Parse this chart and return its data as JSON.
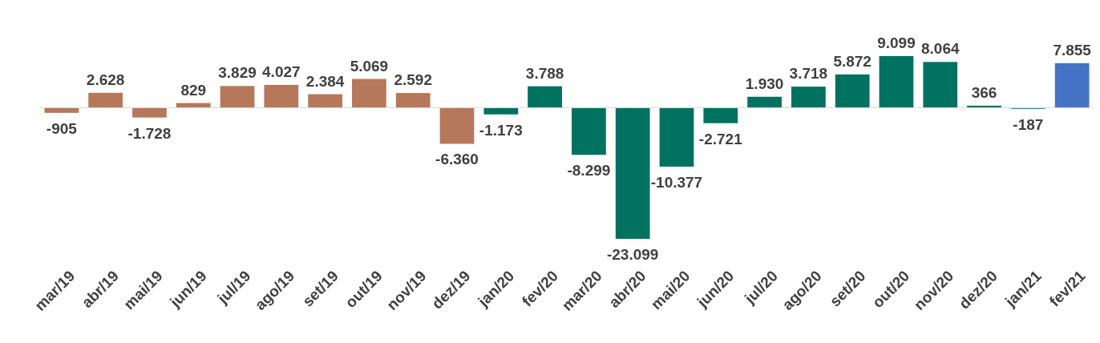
{
  "chart_data": {
    "type": "bar",
    "categories": [
      "mar/19",
      "abr/19",
      "mai/19",
      "jun/19",
      "jul/19",
      "ago/19",
      "set/19",
      "out/19",
      "nov/19",
      "dez/19",
      "jan/20",
      "fev/20",
      "mar/20",
      "abr/20",
      "mai/20",
      "jun/20",
      "jul/20",
      "ago/20",
      "set/20",
      "out/20",
      "nov/20",
      "dez/20",
      "jan/21",
      "fev/21"
    ],
    "values": [
      -905,
      2628,
      -1728,
      829,
      3829,
      4027,
      2384,
      5069,
      2592,
      -6360,
      -1173,
      3788,
      -8299,
      -23099,
      -10377,
      -2721,
      1930,
      3718,
      5872,
      9099,
      8064,
      366,
      -187,
      7855
    ],
    "colors": [
      "#b5785a",
      "#b5785a",
      "#b5785a",
      "#b5785a",
      "#b5785a",
      "#b5785a",
      "#b5785a",
      "#b5785a",
      "#b5785a",
      "#b5785a",
      "#00725f",
      "#00725f",
      "#00725f",
      "#00725f",
      "#00725f",
      "#00725f",
      "#00725f",
      "#00725f",
      "#00725f",
      "#00725f",
      "#00725f",
      "#00725f",
      "#00725f",
      "#4472c4"
    ],
    "value_labels": [
      "-905",
      "2.628",
      "-1.728",
      "829",
      "3.829",
      "4.027",
      "2.384",
      "5.069",
      "2.592",
      "-6.360",
      "-1.173",
      "3.788",
      "-8.299",
      "-23.099",
      "-10.377",
      "-2.721",
      "1.930",
      "3.718",
      "5.872",
      "9.099",
      "8.064",
      "366",
      "-187",
      "7.855"
    ],
    "legend": false
  }
}
